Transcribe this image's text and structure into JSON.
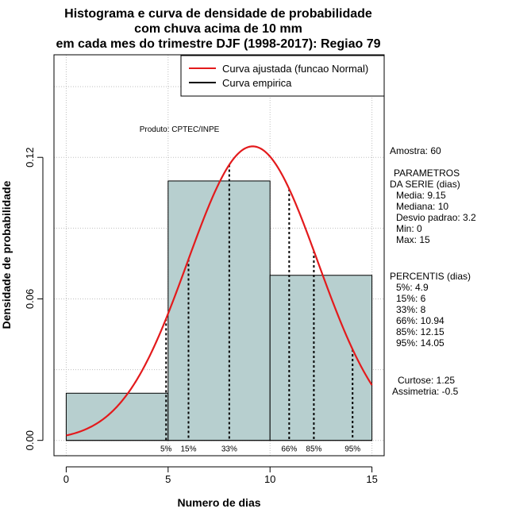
{
  "chart_data": {
    "type": "histogram",
    "title": [
      "Histograma e curva de densidade de probabilidade",
      "com chuva acima de 10 mm",
      "em cada mes do trimestre DJF (1998-2017): Regiao 79"
    ],
    "xlabel": "Numero de dias",
    "ylabel": "Densidade de probabilidade",
    "xlim": [
      -0.6,
      15.6
    ],
    "ylim": [
      -0.0065,
      0.1635
    ],
    "x_ticks": [
      0,
      5,
      10,
      15
    ],
    "x_tick_labels": [
      "0",
      "5",
      "10",
      "15"
    ],
    "y_ticks": [
      0.0,
      0.06,
      0.12
    ],
    "y_tick_labels": [
      "0.00",
      "0.06",
      "0.12"
    ],
    "grid": true,
    "bins": [
      {
        "from": 0,
        "to": 5,
        "density": 0.02
      },
      {
        "from": 5,
        "to": 10,
        "density": 0.11
      },
      {
        "from": 10,
        "to": 15,
        "density": 0.07
      }
    ],
    "bar_color": "#b7cfcf",
    "normal_curve": {
      "name": "Curva ajustada (funcao Normal)",
      "mean": 9.15,
      "sd": 3.2,
      "color": "#e31a1c"
    },
    "empirical_name": "Curva empirica",
    "percentiles": [
      {
        "label": "5%",
        "value": 4.9
      },
      {
        "label": "15%",
        "value": 6
      },
      {
        "label": "33%",
        "value": 8
      },
      {
        "label": "66%",
        "value": 10.94
      },
      {
        "label": "85%",
        "value": 12.15
      },
      {
        "label": "95%",
        "value": 14.05
      }
    ],
    "legend_position": "top-right",
    "annotation": "Produto: CPTEC/INPE"
  },
  "side_panel": {
    "amostra": "Amostra: 60",
    "params_title": "PARAMETROS",
    "params_sub": "DA SERIE (dias)",
    "media": "Media: 9.15",
    "mediana": "Mediana: 10",
    "desvio": "Desvio padrao: 3.2",
    "min": "Min: 0",
    "max": "Max: 15",
    "percentis_title": "PERCENTIS (dias)",
    "p5": "5%: 4.9",
    "p15": "15%: 6",
    "p33": "33%: 8",
    "p66": "66%: 10.94",
    "p85": "85%: 12.15",
    "p95": "95%: 14.05",
    "curtose": "Curtose: 1.25",
    "assimetria": "Assimetria: -0.5"
  }
}
